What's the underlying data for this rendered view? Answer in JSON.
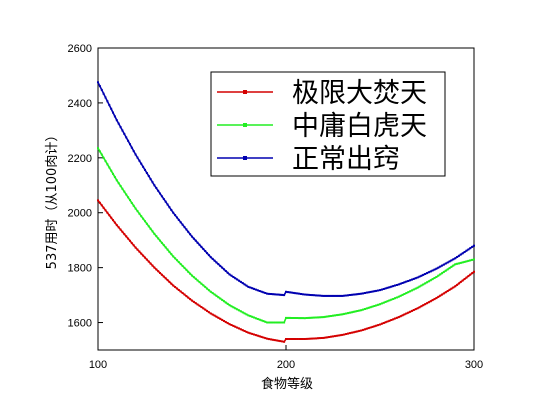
{
  "chart_data": {
    "type": "line",
    "xlabel": "食物等级",
    "ylabel": "537用时（从100肉计）",
    "xlim": [
      100,
      300
    ],
    "ylim": [
      1500,
      2600
    ],
    "x_ticks": [
      100,
      200,
      300
    ],
    "y_ticks": [
      1600,
      1800,
      2000,
      2200,
      2400,
      2600
    ],
    "legend_position": "top-right",
    "grid": false,
    "series": [
      {
        "name": "极限大焚天",
        "color": "#d40000",
        "x": [
          100,
          110,
          120,
          130,
          140,
          150,
          160,
          170,
          180,
          190,
          199,
          200,
          210,
          220,
          230,
          240,
          250,
          260,
          270,
          280,
          290,
          300
        ],
        "y": [
          2045,
          1955,
          1873,
          1800,
          1735,
          1680,
          1633,
          1594,
          1563,
          1541,
          1530,
          1540,
          1540,
          1544,
          1555,
          1571,
          1593,
          1620,
          1652,
          1689,
          1732,
          1785
        ]
      },
      {
        "name": "中庸白虎天",
        "color": "#22ee22",
        "x": [
          100,
          110,
          120,
          130,
          140,
          150,
          160,
          170,
          180,
          190,
          199,
          200,
          210,
          220,
          230,
          240,
          250,
          260,
          270,
          280,
          290,
          300
        ],
        "y": [
          2235,
          2118,
          2015,
          1923,
          1841,
          1771,
          1712,
          1663,
          1626,
          1600,
          1600,
          1617,
          1616,
          1620,
          1630,
          1645,
          1667,
          1694,
          1727,
          1766,
          1812,
          1830
        ]
      },
      {
        "name": "正常出窍",
        "color": "#0000b0",
        "x": [
          100,
          110,
          120,
          130,
          140,
          150,
          160,
          170,
          180,
          190,
          199,
          200,
          210,
          220,
          230,
          240,
          250,
          260,
          270,
          280,
          290,
          300
        ],
        "y": [
          2475,
          2337,
          2212,
          2100,
          2000,
          1913,
          1838,
          1775,
          1730,
          1705,
          1700,
          1712,
          1702,
          1697,
          1697,
          1705,
          1718,
          1739,
          1764,
          1796,
          1834,
          1880
        ]
      }
    ]
  }
}
